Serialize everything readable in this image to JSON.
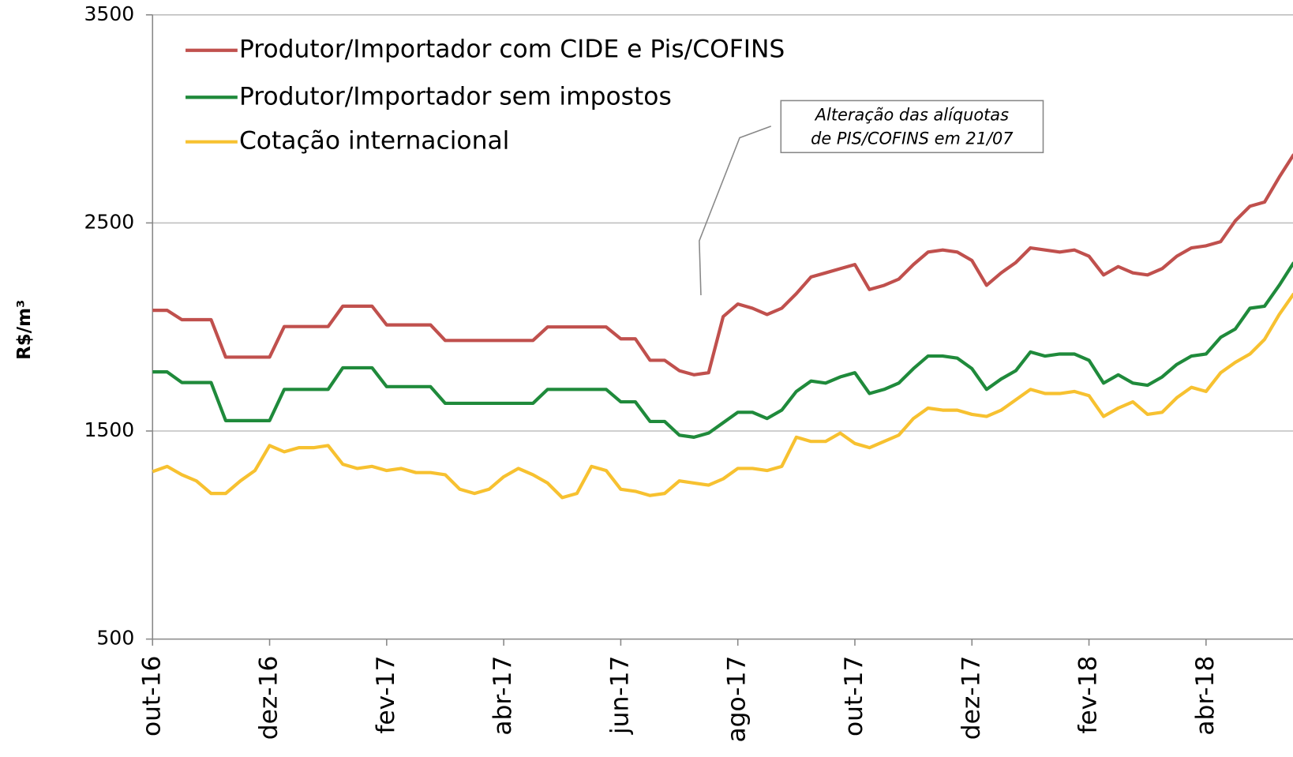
{
  "chart_data": {
    "type": "line",
    "y_label": "R$/m³",
    "annotation": [
      "Alteração das alíquotas",
      "de PIS/COFINS em 21/07"
    ],
    "ylim": [
      500,
      3500
    ],
    "yticks": [
      500,
      1500,
      2500,
      3500
    ],
    "grid": true,
    "legend": "upper left",
    "categories": [
      "out-16",
      null,
      null,
      null,
      null,
      null,
      null,
      null,
      "dez-16",
      null,
      null,
      null,
      null,
      null,
      null,
      null,
      "fev-17",
      null,
      null,
      null,
      null,
      null,
      null,
      null,
      "abr-17",
      null,
      null,
      null,
      null,
      null,
      null,
      null,
      "jun-17",
      null,
      null,
      null,
      null,
      null,
      null,
      null,
      "ago-17",
      null,
      null,
      null,
      null,
      null,
      null,
      null,
      "out-17",
      null,
      null,
      null,
      null,
      null,
      null,
      null,
      "dez-17",
      null,
      null,
      null,
      null,
      null,
      null,
      null,
      "fev-18",
      null,
      null,
      null,
      null,
      null,
      null,
      null,
      "abr-18",
      null,
      null,
      null,
      null,
      null,
      null
    ],
    "series": [
      {
        "name": "Produtor/Importador com CIDE e Pis/COFINS",
        "color": "#c0504d",
        "values": [
          2080,
          2080,
          2035,
          2035,
          2035,
          1855,
          1855,
          1855,
          1855,
          2002,
          2002,
          2002,
          2002,
          2100,
          2100,
          2100,
          2010,
          2010,
          2010,
          2010,
          1935,
          1935,
          1935,
          1935,
          1935,
          1935,
          1935,
          2000,
          2000,
          2000,
          2000,
          2000,
          1943,
          1943,
          1840,
          1840,
          1790,
          1770,
          1780,
          2050,
          2110,
          2090,
          2060,
          2090,
          2160,
          2240,
          2260,
          2280,
          2300,
          2180,
          2200,
          2230,
          2300,
          2360,
          2370,
          2360,
          2320,
          2200,
          2260,
          2310,
          2380,
          2370,
          2360,
          2370,
          2340,
          2250,
          2290,
          2260,
          2250,
          2280,
          2340,
          2380,
          2390,
          2410,
          2510,
          2580,
          2600,
          2720,
          2830
        ]
      },
      {
        "name": "Produtor/Importador sem impostos",
        "color": "#1f8a3b",
        "values": [
          1784,
          1784,
          1733,
          1733,
          1733,
          1550,
          1550,
          1550,
          1550,
          1700,
          1700,
          1700,
          1700,
          1804,
          1804,
          1804,
          1713,
          1713,
          1713,
          1713,
          1633,
          1633,
          1633,
          1633,
          1633,
          1633,
          1633,
          1700,
          1700,
          1700,
          1700,
          1700,
          1640,
          1640,
          1546,
          1546,
          1480,
          1470,
          1490,
          1540,
          1590,
          1590,
          1560,
          1600,
          1690,
          1740,
          1730,
          1760,
          1780,
          1680,
          1700,
          1730,
          1800,
          1860,
          1860,
          1850,
          1800,
          1700,
          1750,
          1790,
          1880,
          1860,
          1870,
          1870,
          1840,
          1730,
          1770,
          1730,
          1720,
          1760,
          1820,
          1860,
          1870,
          1950,
          1990,
          2090,
          2100,
          2200,
          2310
        ]
      },
      {
        "name": "Cotação internacional",
        "color": "#f7c130",
        "values": [
          1305,
          1330,
          1290,
          1260,
          1200,
          1200,
          1260,
          1310,
          1430,
          1400,
          1420,
          1420,
          1430,
          1340,
          1320,
          1330,
          1310,
          1320,
          1300,
          1300,
          1290,
          1220,
          1200,
          1220,
          1280,
          1320,
          1290,
          1250,
          1180,
          1200,
          1330,
          1310,
          1220,
          1210,
          1190,
          1200,
          1260,
          1250,
          1240,
          1270,
          1320,
          1320,
          1310,
          1330,
          1470,
          1450,
          1450,
          1490,
          1440,
          1420,
          1450,
          1480,
          1560,
          1610,
          1600,
          1600,
          1580,
          1570,
          1600,
          1650,
          1700,
          1680,
          1680,
          1690,
          1670,
          1570,
          1610,
          1640,
          1580,
          1590,
          1660,
          1710,
          1690,
          1780,
          1830,
          1870,
          1940,
          2060,
          2160
        ]
      }
    ]
  }
}
